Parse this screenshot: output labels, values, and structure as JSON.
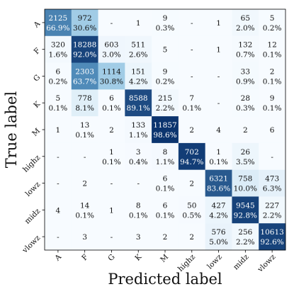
{
  "chart_data": {
    "type": "heatmap",
    "xlabel": "Predicted label",
    "ylabel": "True label",
    "labels": [
      "A",
      "F",
      "G",
      "K",
      "M",
      "highz",
      "lowz",
      "midz",
      "vlowz"
    ],
    "colormap": {
      "low": "#f7fbff",
      "mid": "#6baed6",
      "high": "#08306b"
    },
    "cells": [
      [
        {
          "c": "2125",
          "p": "66.9%",
          "f": 0.669
        },
        {
          "c": "972",
          "p": "30.6%",
          "f": 0.306
        },
        {
          "c": "-",
          "p": "",
          "f": 0
        },
        {
          "c": "1",
          "p": "",
          "f": 0
        },
        {
          "c": "9",
          "p": "0.3%",
          "f": 0.003
        },
        {
          "c": "-",
          "p": "",
          "f": 0
        },
        {
          "c": "1",
          "p": "",
          "f": 0
        },
        {
          "c": "65",
          "p": "2.0%",
          "f": 0.02
        },
        {
          "c": "5",
          "p": "0.2%",
          "f": 0.002
        }
      ],
      [
        {
          "c": "320",
          "p": "1.6%",
          "f": 0.016
        },
        {
          "c": "18288",
          "p": "92.0%",
          "f": 0.92
        },
        {
          "c": "603",
          "p": "3.0%",
          "f": 0.03
        },
        {
          "c": "511",
          "p": "2.6%",
          "f": 0.026
        },
        {
          "c": "5",
          "p": "",
          "f": 0
        },
        {
          "c": "-",
          "p": "",
          "f": 0
        },
        {
          "c": "1",
          "p": "",
          "f": 0
        },
        {
          "c": "132",
          "p": "0.7%",
          "f": 0.007
        },
        {
          "c": "12",
          "p": "0.1%",
          "f": 0.001
        }
      ],
      [
        {
          "c": "6",
          "p": "0.2%",
          "f": 0.002
        },
        {
          "c": "2303",
          "p": "63.7%",
          "f": 0.637
        },
        {
          "c": "1114",
          "p": "30.8%",
          "f": 0.308
        },
        {
          "c": "151",
          "p": "4.2%",
          "f": 0.042
        },
        {
          "c": "9",
          "p": "0.2%",
          "f": 0.002
        },
        {
          "c": "-",
          "p": "",
          "f": 0
        },
        {
          "c": "-",
          "p": "",
          "f": 0
        },
        {
          "c": "33",
          "p": "0.9%",
          "f": 0.009
        },
        {
          "c": "2",
          "p": "0.1%",
          "f": 0.001
        }
      ],
      [
        {
          "c": "5",
          "p": "0.1%",
          "f": 0.001
        },
        {
          "c": "778",
          "p": "8.1%",
          "f": 0.081
        },
        {
          "c": "6",
          "p": "0.1%",
          "f": 0.001
        },
        {
          "c": "8588",
          "p": "89.1%",
          "f": 0.891
        },
        {
          "c": "215",
          "p": "2.2%",
          "f": 0.022
        },
        {
          "c": "7",
          "p": "0.1%",
          "f": 0.001
        },
        {
          "c": "-",
          "p": "",
          "f": 0
        },
        {
          "c": "28",
          "p": "0.3%",
          "f": 0.003
        },
        {
          "c": "9",
          "p": "0.1%",
          "f": 0.001
        }
      ],
      [
        {
          "c": "1",
          "p": "",
          "f": 0
        },
        {
          "c": "13",
          "p": "0.1%",
          "f": 0.001
        },
        {
          "c": "2",
          "p": "",
          "f": 0
        },
        {
          "c": "133",
          "p": "1.1%",
          "f": 0.011
        },
        {
          "c": "11857",
          "p": "98.6%",
          "f": 0.986
        },
        {
          "c": "2",
          "p": "",
          "f": 0
        },
        {
          "c": "4",
          "p": "",
          "f": 0
        },
        {
          "c": "2",
          "p": "",
          "f": 0
        },
        {
          "c": "6",
          "p": "",
          "f": 0
        }
      ],
      [
        {
          "c": "-",
          "p": "",
          "f": 0
        },
        {
          "c": "-",
          "p": "",
          "f": 0
        },
        {
          "c": "1",
          "p": "0.1%",
          "f": 0.001
        },
        {
          "c": "3",
          "p": "0.4%",
          "f": 0.004
        },
        {
          "c": "8",
          "p": "1.1%",
          "f": 0.011
        },
        {
          "c": "702",
          "p": "94.7%",
          "f": 0.947
        },
        {
          "c": "1",
          "p": "0.1%",
          "f": 0.001
        },
        {
          "c": "26",
          "p": "3.5%",
          "f": 0.035
        },
        {
          "c": "-",
          "p": "",
          "f": 0
        }
      ],
      [
        {
          "c": "-",
          "p": "",
          "f": 0
        },
        {
          "c": "2",
          "p": "",
          "f": 0
        },
        {
          "c": "-",
          "p": "",
          "f": 0
        },
        {
          "c": "-",
          "p": "",
          "f": 0
        },
        {
          "c": "6",
          "p": "0.1%",
          "f": 0.001
        },
        {
          "c": "2",
          "p": "",
          "f": 0
        },
        {
          "c": "6321",
          "p": "83.6%",
          "f": 0.836
        },
        {
          "c": "758",
          "p": "10.0%",
          "f": 0.1
        },
        {
          "c": "473",
          "p": "6.3%",
          "f": 0.063
        }
      ],
      [
        {
          "c": "4",
          "p": "",
          "f": 0
        },
        {
          "c": "14",
          "p": "0.1%",
          "f": 0.001
        },
        {
          "c": "1",
          "p": "",
          "f": 0
        },
        {
          "c": "8",
          "p": "0.1%",
          "f": 0.001
        },
        {
          "c": "6",
          "p": "0.1%",
          "f": 0.001
        },
        {
          "c": "50",
          "p": "0.5%",
          "f": 0.005
        },
        {
          "c": "427",
          "p": "4.2%",
          "f": 0.042
        },
        {
          "c": "9545",
          "p": "92.8%",
          "f": 0.928
        },
        {
          "c": "227",
          "p": "2.2%",
          "f": 0.022
        }
      ],
      [
        {
          "c": "-",
          "p": "",
          "f": 0
        },
        {
          "c": "3",
          "p": "",
          "f": 0
        },
        {
          "c": "-",
          "p": "",
          "f": 0
        },
        {
          "c": "3",
          "p": "",
          "f": 0
        },
        {
          "c": "2",
          "p": "",
          "f": 0
        },
        {
          "c": "2",
          "p": "",
          "f": 0
        },
        {
          "c": "576",
          "p": "5.0%",
          "f": 0.05
        },
        {
          "c": "256",
          "p": "2.2%",
          "f": 0.022
        },
        {
          "c": "10613",
          "p": "92.6%",
          "f": 0.926
        }
      ]
    ]
  }
}
